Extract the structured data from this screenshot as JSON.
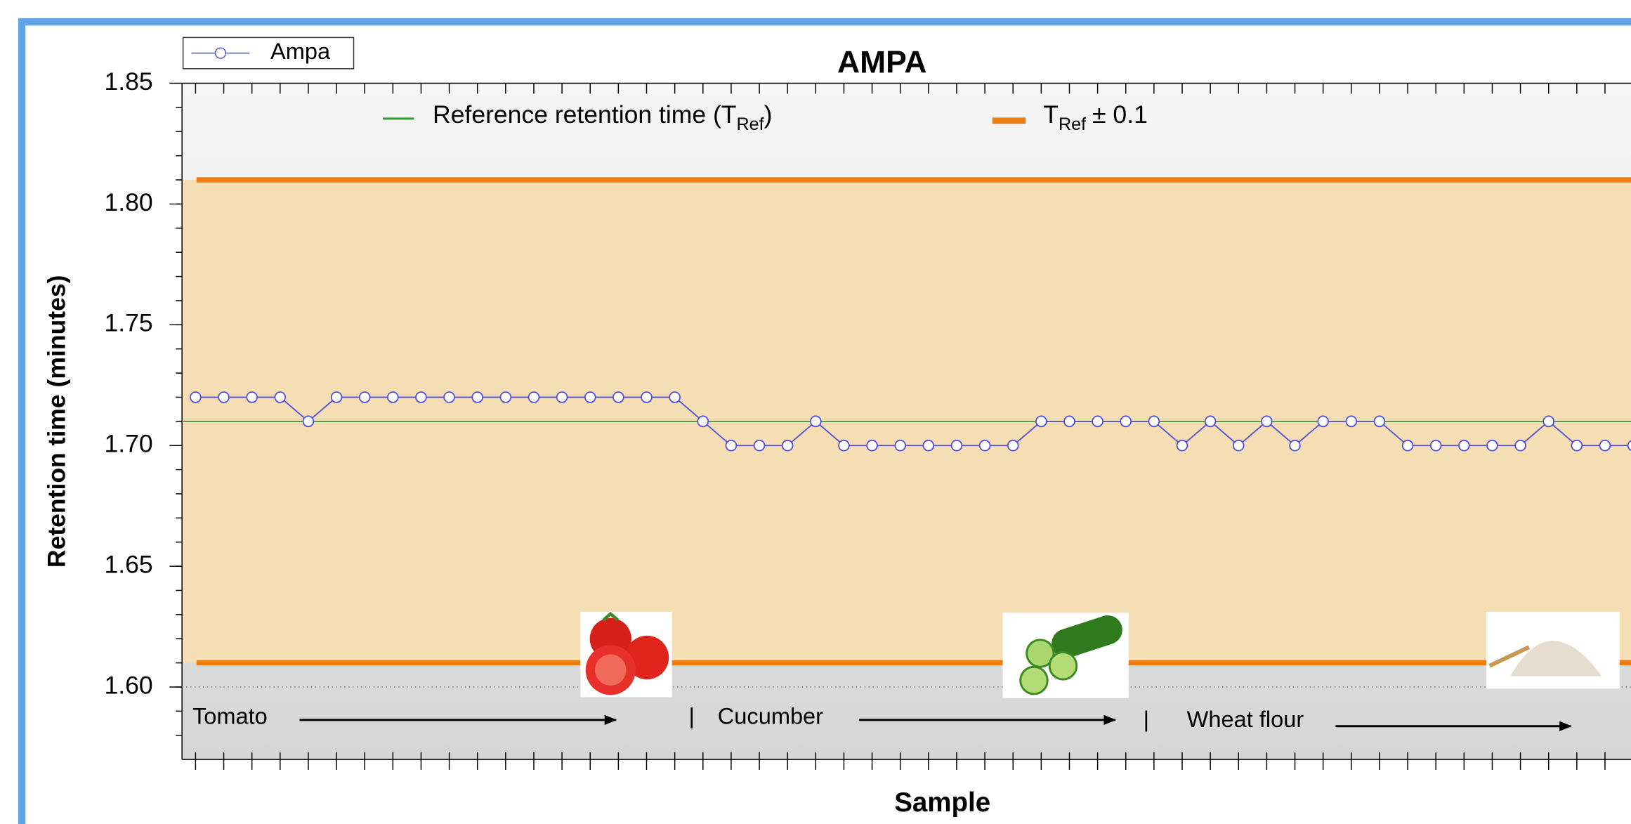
{
  "chart_data": {
    "type": "line",
    "title": "AMPA",
    "x_label": "Sample",
    "y_label": "Retention time (minutes)",
    "series": [
      {
        "name": "Ampa",
        "color": "#4f4fd8",
        "values": [
          1.72,
          1.72,
          1.72,
          1.72,
          1.71,
          1.72,
          1.72,
          1.72,
          1.72,
          1.72,
          1.72,
          1.72,
          1.72,
          1.72,
          1.72,
          1.72,
          1.72,
          1.72,
          1.71,
          1.7,
          1.7,
          1.7,
          1.71,
          1.7,
          1.7,
          1.7,
          1.7,
          1.7,
          1.7,
          1.7,
          1.71,
          1.71,
          1.71,
          1.71,
          1.71,
          1.7,
          1.71,
          1.7,
          1.71,
          1.7,
          1.71,
          1.71,
          1.71,
          1.7,
          1.7,
          1.7,
          1.7,
          1.7,
          1.71,
          1.7,
          1.7,
          1.7
        ]
      }
    ],
    "ylim": [
      1.57,
      1.85
    ],
    "yticks": [
      {
        "value": 1.6,
        "label": "1.60"
      },
      1.65,
      {
        "value": 1.7,
        "label": "1.70"
      },
      1.75,
      {
        "value": 1.8,
        "label": "1.80"
      },
      1.85
    ],
    "reference": {
      "value": 1.71,
      "color": "#3a9a3a",
      "label_parts": [
        "Reference retention time (T",
        "Ref",
        ")"
      ]
    },
    "band": {
      "lower": 1.61,
      "upper": 1.81,
      "color": "#ee7d11",
      "fill": "#f5deb3",
      "label_parts": [
        "T",
        "Ref",
        "± 0.1"
      ]
    },
    "annotations": [
      "Tomato",
      "Cucumber",
      "Wheat flour"
    ],
    "separators": [
      "|",
      "|"
    ]
  }
}
